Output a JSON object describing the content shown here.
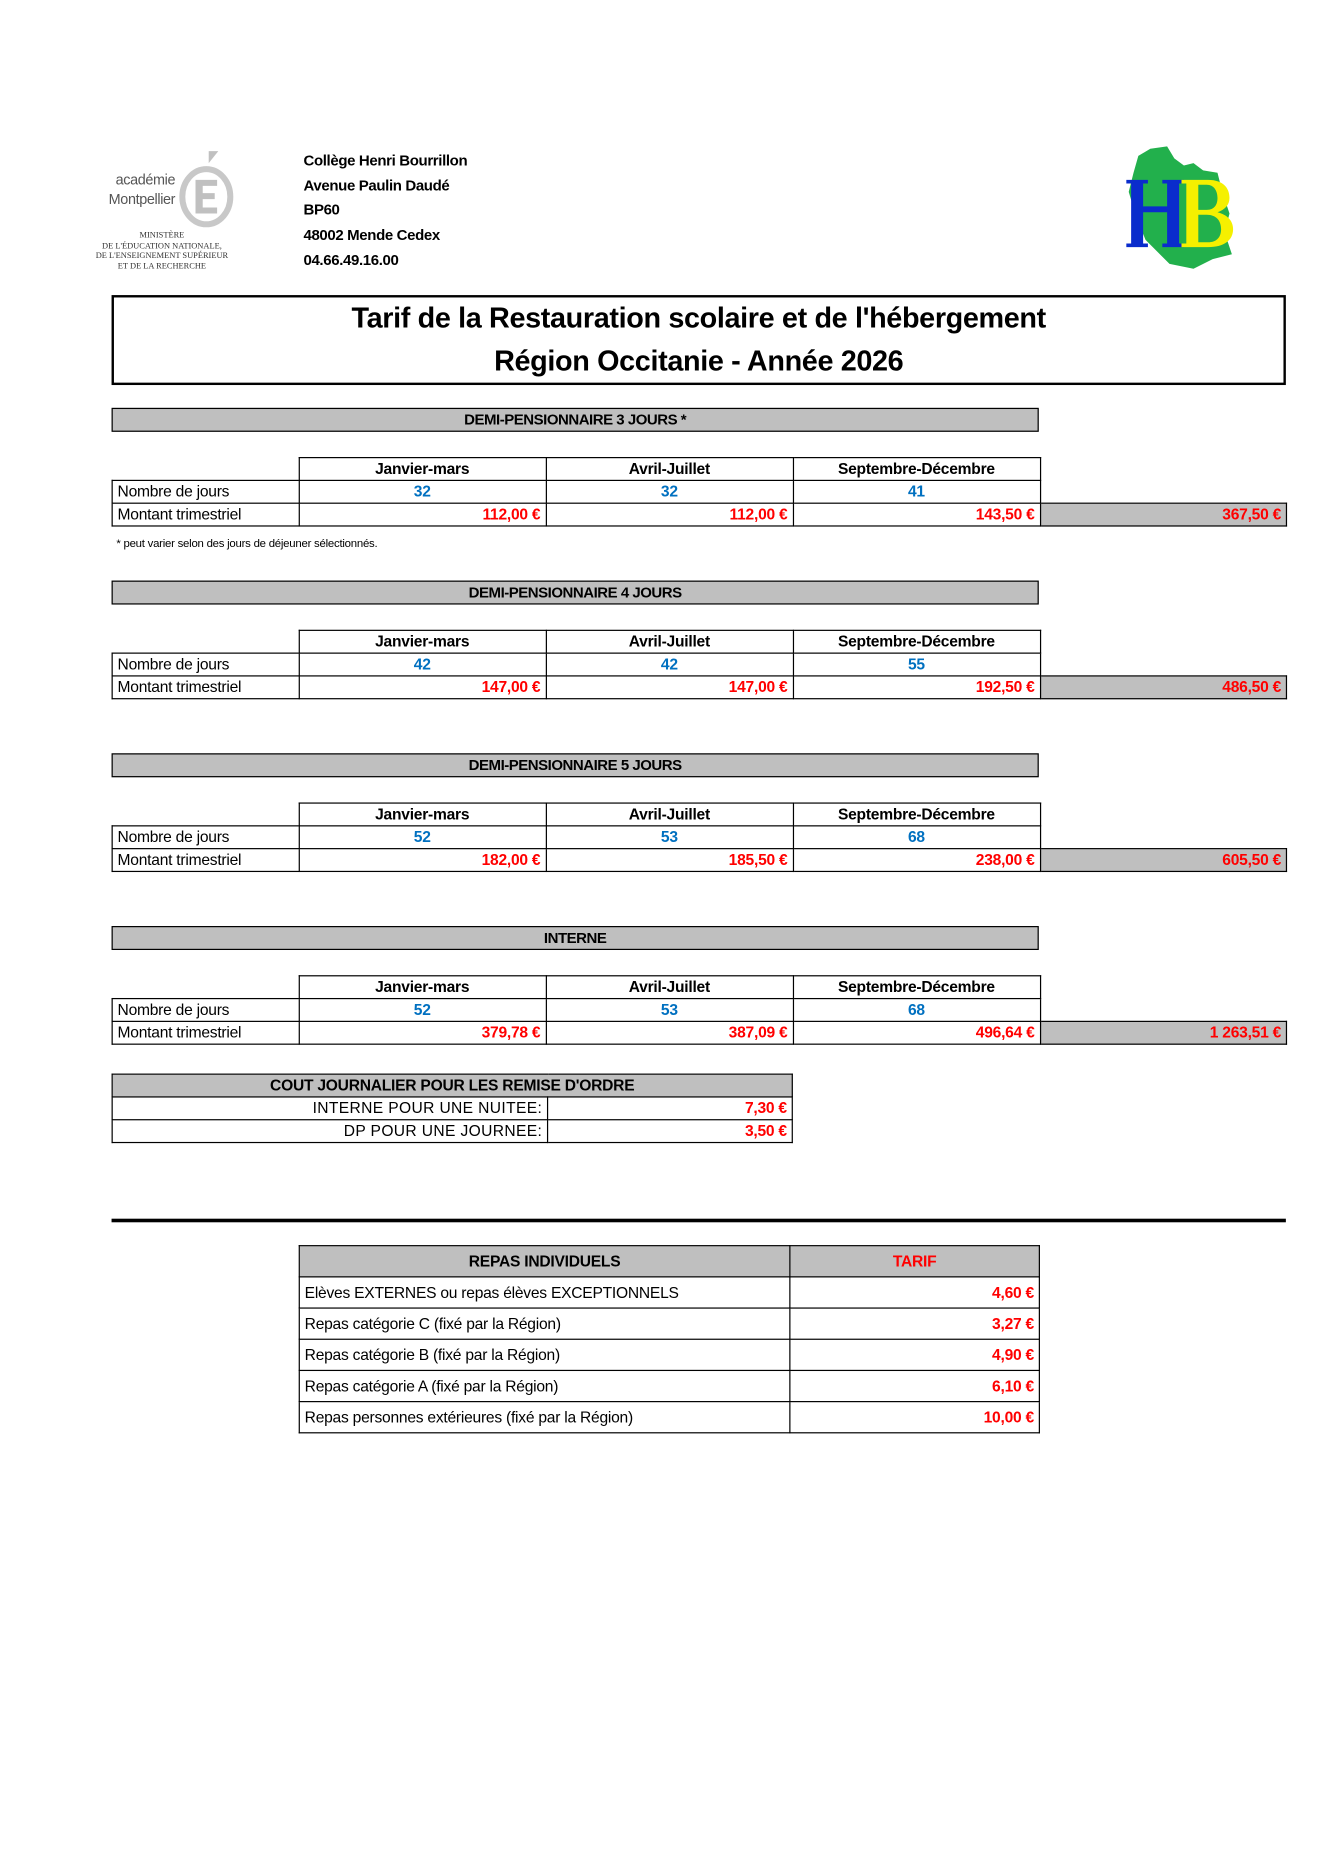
{
  "header": {
    "academie_logo": {
      "line1": "académie",
      "line2": "Montpellier",
      "ministry": [
        "MINISTÈRE",
        "DE L'ÉDUCATION NATIONALE,",
        "DE L'ENSEIGNEMENT SUPÉRIEUR",
        "ET DE LA RECHERCHE"
      ]
    },
    "address": [
      "Collège Henri Bourrillon",
      "Avenue Paulin Daudé",
      "BP60",
      "48002 Mende Cedex",
      "04.66.49.16.00"
    ],
    "school_logo": {
      "letters": "HB",
      "colors": {
        "map": "#22b04c",
        "h": "#0a2ccc",
        "b": "#f5f000"
      }
    }
  },
  "title": {
    "line1": "Tarif de la Restauration scolaire et de l'hébergement",
    "line2": "Région Occitanie - Année 2026"
  },
  "colors": {
    "blue": "#0070c0",
    "red": "#ff0000",
    "gray": "#bfbfbf"
  },
  "columns": [
    "Janvier-mars",
    "Avril-Juillet",
    "Septembre-Décembre"
  ],
  "row_labels": {
    "jours": "Nombre de jours",
    "montant": "Montant trimestriel"
  },
  "sections": [
    {
      "title": "DEMI-PENSIONNAIRE 3 JOURS *",
      "jours": [
        "32",
        "32",
        "41"
      ],
      "montants": [
        "112,00 €",
        "112,00 €",
        "143,50 €"
      ],
      "total": "367,50 €",
      "note": "* peut varier selon des jours de déjeuner sélectionnés."
    },
    {
      "title": "DEMI-PENSIONNAIRE 4 JOURS",
      "jours": [
        "42",
        "42",
        "55"
      ],
      "montants": [
        "147,00 €",
        "147,00 €",
        "192,50 €"
      ],
      "total": "486,50 €"
    },
    {
      "title": "DEMI-PENSIONNAIRE 5 JOURS",
      "jours": [
        "52",
        "53",
        "68"
      ],
      "montants": [
        "182,00 €",
        "185,50 €",
        "238,00 €"
      ],
      "total": "605,50 €"
    },
    {
      "title": "INTERNE",
      "jours": [
        "52",
        "53",
        "68"
      ],
      "montants": [
        "379,78 €",
        "387,09 €",
        "496,64 €"
      ],
      "total": "1 263,51 €"
    }
  ],
  "cout_journalier": {
    "title": "COUT JOURNALIER POUR LES REMISE D'ORDRE",
    "rows": [
      {
        "label": "INTERNE POUR UNE NUITEE:",
        "value": "7,30 €"
      },
      {
        "label": "DP POUR UNE JOURNEE:",
        "value": "3,50 €"
      }
    ]
  },
  "repas": {
    "header": "REPAS INDIVIDUELS",
    "tarif_header": "TARIF",
    "rows": [
      {
        "label": "Elèves EXTERNES ou repas élèves EXCEPTIONNELS",
        "value": "4,60 €"
      },
      {
        "label": "Repas catégorie C (fixé par la Région)",
        "value": "3,27 €"
      },
      {
        "label": "Repas catégorie B (fixé par la Région)",
        "value": "4,90 €"
      },
      {
        "label": "Repas catégorie A (fixé par la Région)",
        "value": "6,10 €"
      },
      {
        "label": "Repas personnes extérieures (fixé par la Région)",
        "value": "10,00 €"
      }
    ]
  }
}
